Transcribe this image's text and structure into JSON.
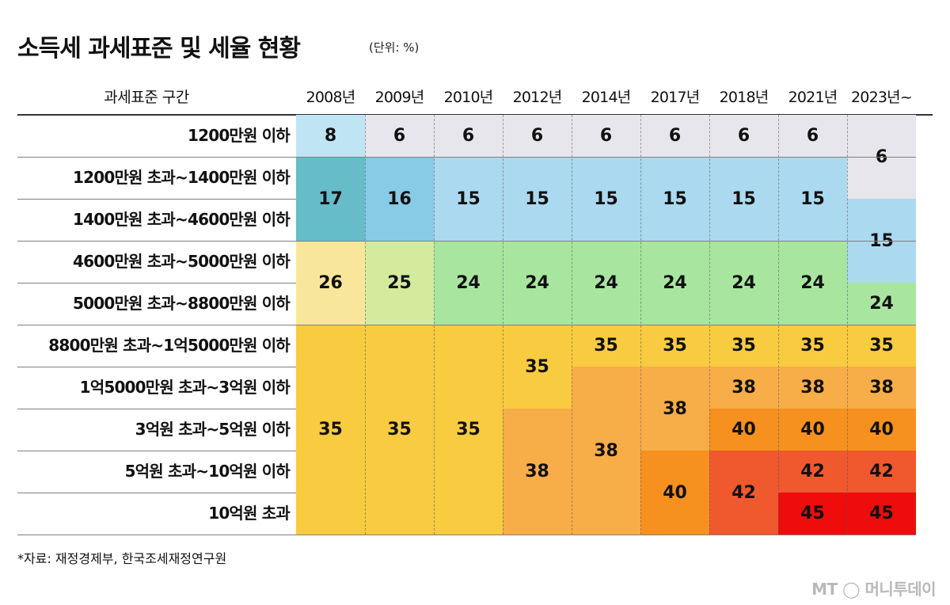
{
  "title": "소득세 과세표준 및 세율 현황",
  "unit": "(단위: %)",
  "source": "*자료: 재정경제부, 한국조세재정연구원",
  "logo": "MT ◯ 머니투데이",
  "colors": {
    "gray": "#e6e6ec",
    "light_blue": "#bfe4f4",
    "blue": "#abd9ef",
    "mid_blue": "#88cbe7",
    "teal": "#66bcc9",
    "yellow_light": "#f8e79a",
    "yellow_green": "#d4ea9c",
    "green": "#a8e6a0",
    "yellow": "#f9cb40",
    "orange_light": "#f7ad48",
    "orange": "#f6901e",
    "red_orange": "#f0582e",
    "red": "#ee0c0c"
  },
  "chart_data": {
    "type": "table",
    "header_label": "과세표준 구간",
    "columns": [
      "2008년",
      "2009년",
      "2010년",
      "2012년",
      "2014년",
      "2017년",
      "2018년",
      "2021년",
      "2023년~"
    ],
    "rows": [
      "1200만원 이하",
      "1200만원 초과~1400만원 이하",
      "1400만원 초과~4600만원 이하",
      "4600만원 초과~5000만원 이하",
      "5000만원 초과~8800만원 이하",
      "8800만원 초과~1억5000만원 이하",
      "1억5000만원 초과~3억원 이하",
      "3억원 초과~5억원 이하",
      "5억원 초과~10억원 이하",
      "10억원 초과"
    ],
    "rates": [
      [
        8,
        6,
        6,
        6,
        6,
        6,
        6,
        6,
        6
      ],
      [
        17,
        16,
        15,
        15,
        15,
        15,
        15,
        15,
        6
      ],
      [
        17,
        16,
        15,
        15,
        15,
        15,
        15,
        15,
        15
      ],
      [
        26,
        25,
        24,
        24,
        24,
        24,
        24,
        24,
        15
      ],
      [
        26,
        25,
        24,
        24,
        24,
        24,
        24,
        24,
        24
      ],
      [
        35,
        35,
        35,
        35,
        35,
        35,
        35,
        35,
        35
      ],
      [
        35,
        35,
        35,
        35,
        38,
        38,
        38,
        38,
        38
      ],
      [
        35,
        35,
        35,
        38,
        38,
        38,
        40,
        40,
        40
      ],
      [
        35,
        35,
        35,
        38,
        38,
        40,
        42,
        42,
        42
      ],
      [
        35,
        35,
        35,
        38,
        38,
        40,
        42,
        45,
        45
      ]
    ],
    "blocks": [
      {
        "col": 0,
        "r0": 0,
        "r1": 0,
        "value": 8,
        "color": "light_blue"
      },
      {
        "col": 0,
        "r0": 1,
        "r1": 2,
        "value": 17,
        "color": "teal"
      },
      {
        "col": 0,
        "r0": 3,
        "r1": 4,
        "value": 26,
        "color": "yellow_light"
      },
      {
        "col": 0,
        "r0": 5,
        "r1": 9,
        "value": 35,
        "color": "yellow"
      },
      {
        "col": 1,
        "r0": 0,
        "r1": 0,
        "value": 6,
        "color": "gray"
      },
      {
        "col": 1,
        "r0": 1,
        "r1": 2,
        "value": 16,
        "color": "mid_blue"
      },
      {
        "col": 1,
        "r0": 3,
        "r1": 4,
        "value": 25,
        "color": "yellow_green"
      },
      {
        "col": 1,
        "r0": 5,
        "r1": 9,
        "value": 35,
        "color": "yellow"
      },
      {
        "col": 2,
        "r0": 0,
        "r1": 0,
        "value": 6,
        "color": "gray"
      },
      {
        "col": 2,
        "r0": 1,
        "r1": 2,
        "value": 15,
        "color": "blue"
      },
      {
        "col": 2,
        "r0": 3,
        "r1": 4,
        "value": 24,
        "color": "green"
      },
      {
        "col": 2,
        "r0": 5,
        "r1": 9,
        "value": 35,
        "color": "yellow"
      },
      {
        "col": 3,
        "r0": 0,
        "r1": 0,
        "value": 6,
        "color": "gray"
      },
      {
        "col": 3,
        "r0": 1,
        "r1": 2,
        "value": 15,
        "color": "blue"
      },
      {
        "col": 3,
        "r0": 3,
        "r1": 4,
        "value": 24,
        "color": "green"
      },
      {
        "col": 3,
        "r0": 5,
        "r1": 6,
        "value": 35,
        "color": "yellow"
      },
      {
        "col": 3,
        "r0": 7,
        "r1": 9,
        "value": 38,
        "color": "orange_light"
      },
      {
        "col": 4,
        "r0": 0,
        "r1": 0,
        "value": 6,
        "color": "gray"
      },
      {
        "col": 4,
        "r0": 1,
        "r1": 2,
        "value": 15,
        "color": "blue"
      },
      {
        "col": 4,
        "r0": 3,
        "r1": 4,
        "value": 24,
        "color": "green"
      },
      {
        "col": 4,
        "r0": 5,
        "r1": 5,
        "value": 35,
        "color": "yellow"
      },
      {
        "col": 4,
        "r0": 6,
        "r1": 9,
        "value": 38,
        "color": "orange_light"
      },
      {
        "col": 5,
        "r0": 0,
        "r1": 0,
        "value": 6,
        "color": "gray"
      },
      {
        "col": 5,
        "r0": 1,
        "r1": 2,
        "value": 15,
        "color": "blue"
      },
      {
        "col": 5,
        "r0": 3,
        "r1": 4,
        "value": 24,
        "color": "green"
      },
      {
        "col": 5,
        "r0": 5,
        "r1": 5,
        "value": 35,
        "color": "yellow"
      },
      {
        "col": 5,
        "r0": 6,
        "r1": 7,
        "value": 38,
        "color": "orange_light"
      },
      {
        "col": 5,
        "r0": 8,
        "r1": 9,
        "value": 40,
        "color": "orange"
      },
      {
        "col": 6,
        "r0": 0,
        "r1": 0,
        "value": 6,
        "color": "gray"
      },
      {
        "col": 6,
        "r0": 1,
        "r1": 2,
        "value": 15,
        "color": "blue"
      },
      {
        "col": 6,
        "r0": 3,
        "r1": 4,
        "value": 24,
        "color": "green"
      },
      {
        "col": 6,
        "r0": 5,
        "r1": 5,
        "value": 35,
        "color": "yellow"
      },
      {
        "col": 6,
        "r0": 6,
        "r1": 6,
        "value": 38,
        "color": "orange_light"
      },
      {
        "col": 6,
        "r0": 7,
        "r1": 7,
        "value": 40,
        "color": "orange"
      },
      {
        "col": 6,
        "r0": 8,
        "r1": 9,
        "value": 42,
        "color": "red_orange"
      },
      {
        "col": 7,
        "r0": 0,
        "r1": 0,
        "value": 6,
        "color": "gray"
      },
      {
        "col": 7,
        "r0": 1,
        "r1": 2,
        "value": 15,
        "color": "blue"
      },
      {
        "col": 7,
        "r0": 3,
        "r1": 4,
        "value": 24,
        "color": "green"
      },
      {
        "col": 7,
        "r0": 5,
        "r1": 5,
        "value": 35,
        "color": "yellow"
      },
      {
        "col": 7,
        "r0": 6,
        "r1": 6,
        "value": 38,
        "color": "orange_light"
      },
      {
        "col": 7,
        "r0": 7,
        "r1": 7,
        "value": 40,
        "color": "orange"
      },
      {
        "col": 7,
        "r0": 8,
        "r1": 8,
        "value": 42,
        "color": "red_orange"
      },
      {
        "col": 7,
        "r0": 9,
        "r1": 9,
        "value": 45,
        "color": "red"
      },
      {
        "col": 8,
        "r0": 0,
        "r1": 1,
        "value": 6,
        "color": "gray"
      },
      {
        "col": 8,
        "r0": 2,
        "r1": 3,
        "value": 15,
        "color": "blue"
      },
      {
        "col": 8,
        "r0": 4,
        "r1": 4,
        "value": 24,
        "color": "green"
      },
      {
        "col": 8,
        "r0": 5,
        "r1": 5,
        "value": 35,
        "color": "yellow"
      },
      {
        "col": 8,
        "r0": 6,
        "r1": 6,
        "value": 38,
        "color": "orange_light"
      },
      {
        "col": 8,
        "r0": 7,
        "r1": 7,
        "value": 40,
        "color": "orange"
      },
      {
        "col": 8,
        "r0": 8,
        "r1": 8,
        "value": 42,
        "color": "red_orange"
      },
      {
        "col": 8,
        "r0": 9,
        "r1": 9,
        "value": 45,
        "color": "red"
      }
    ]
  }
}
